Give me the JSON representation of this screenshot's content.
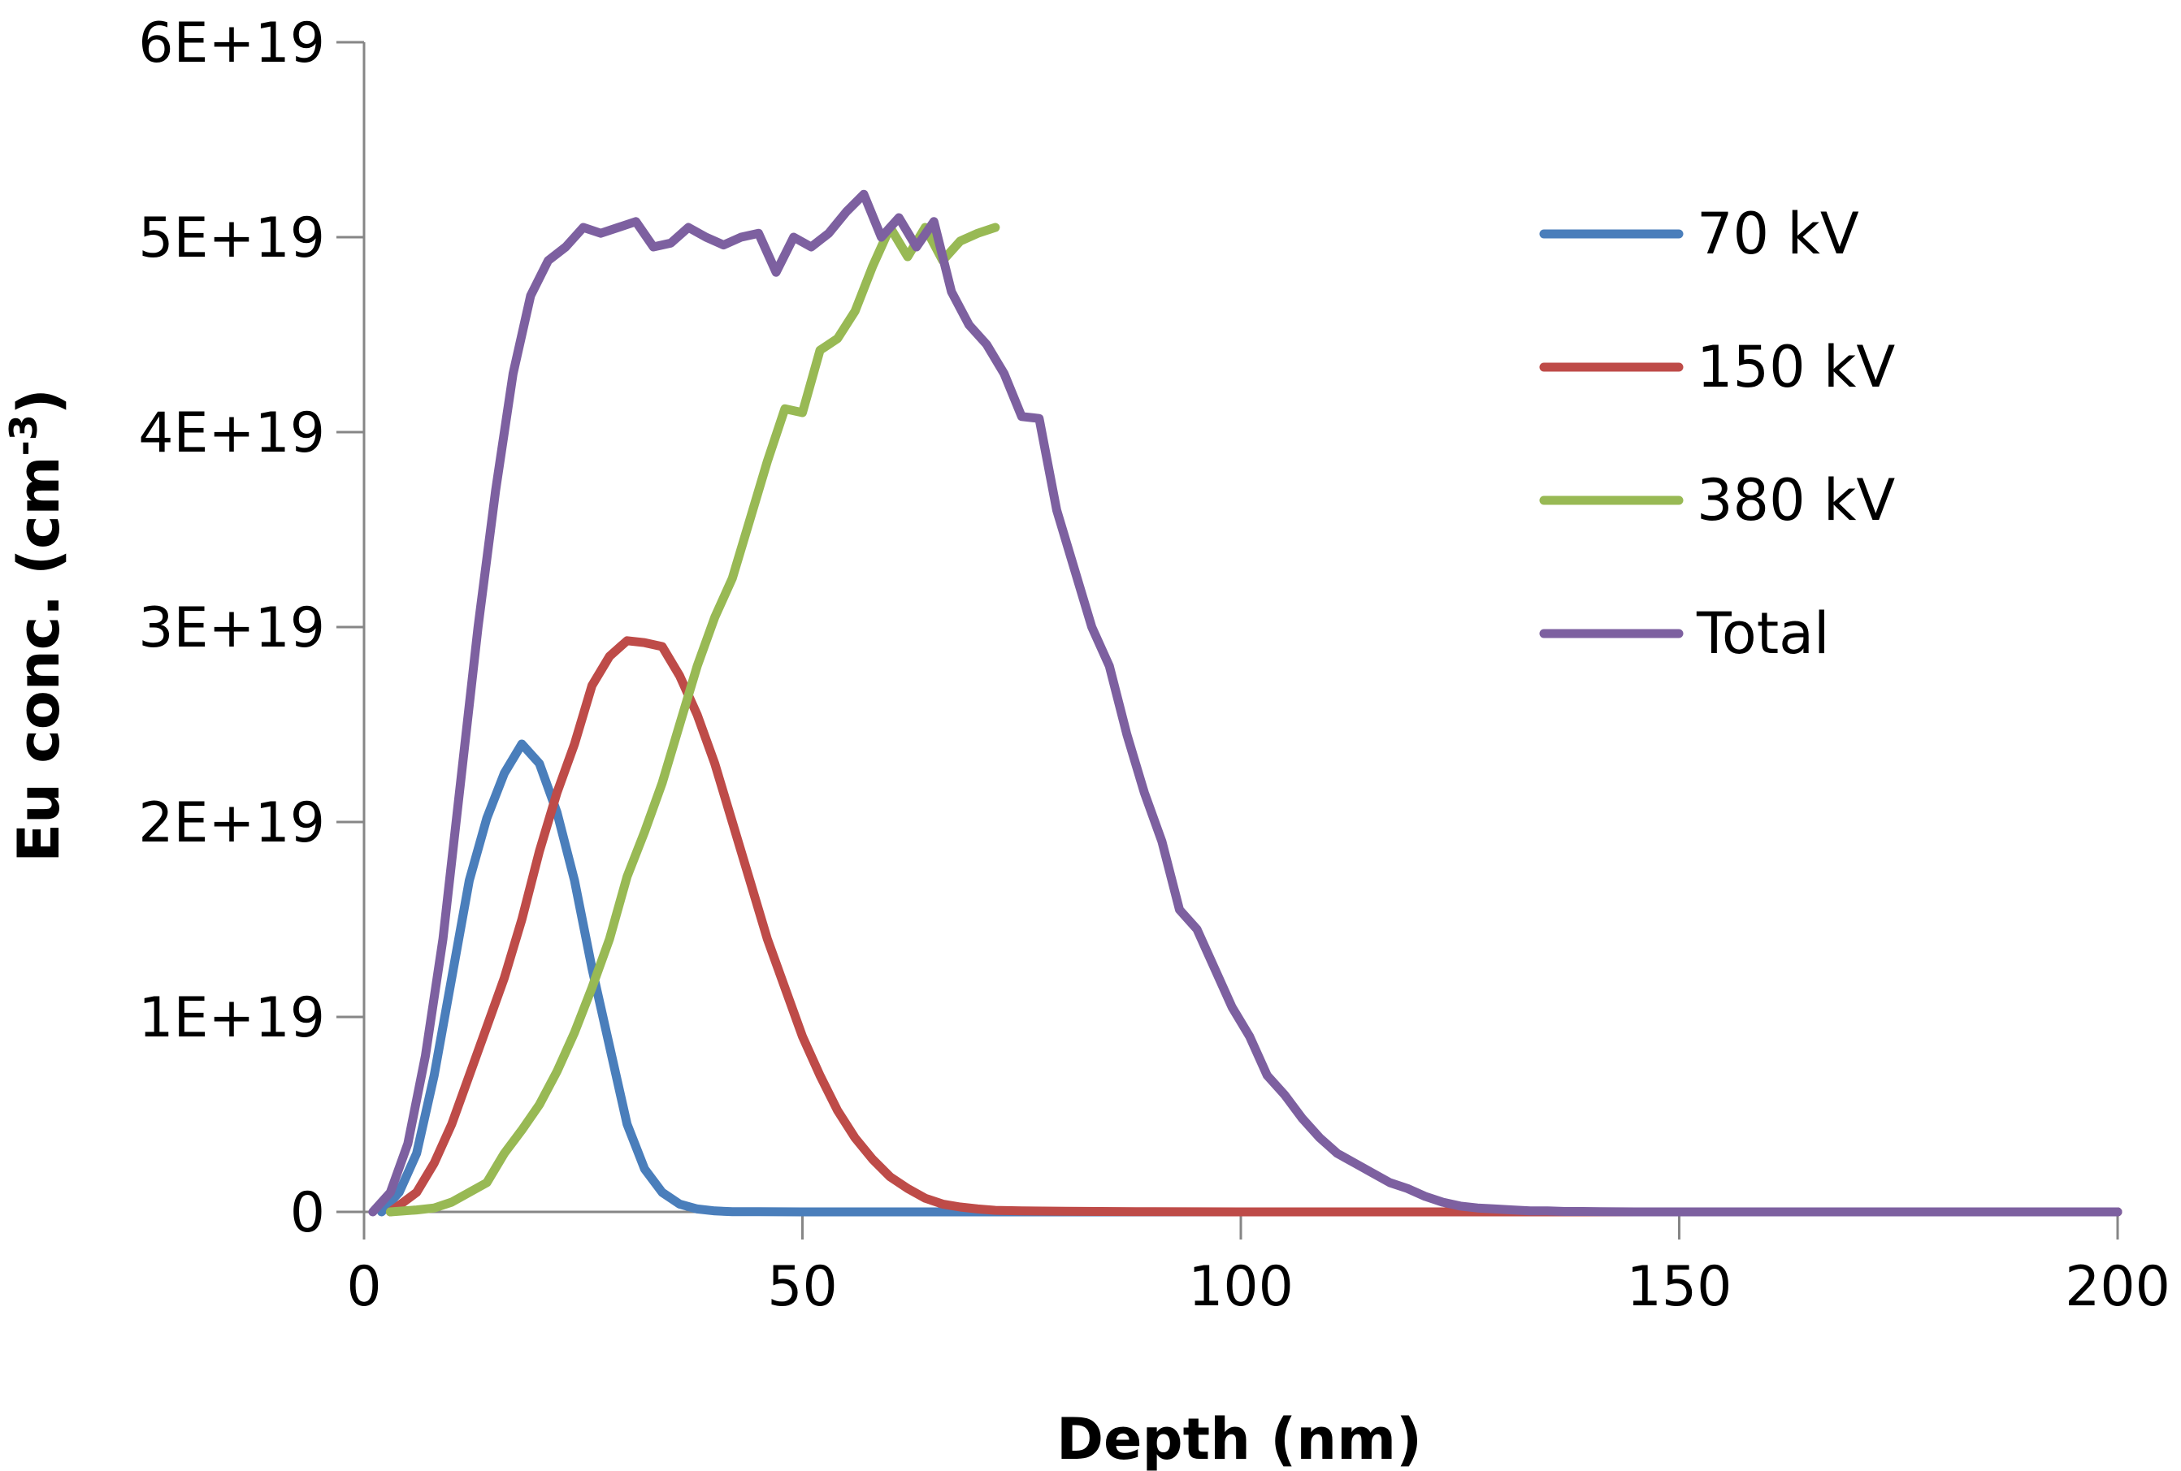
{
  "chart_data": {
    "type": "line",
    "title": "",
    "xlabel": "Depth (nm)",
    "ylabel_main": "Eu conc. (cm",
    "ylabel_sup": "-3",
    "ylabel_close": ")",
    "xlim": [
      0,
      200
    ],
    "ylim": [
      0,
      6e+19
    ],
    "x_ticks": [
      0,
      50,
      100,
      150,
      200
    ],
    "x_tick_labels": [
      "0",
      "50",
      "100",
      "150",
      "200"
    ],
    "y_ticks": [
      0,
      1e+19,
      2e+19,
      3e+19,
      4e+19,
      5e+19,
      6e+19
    ],
    "y_tick_labels": [
      "0",
      "1E+19",
      "2E+19",
      "3E+19",
      "4E+19",
      "5E+19",
      "6E+19"
    ],
    "grid": false,
    "legend_position": "right",
    "series": [
      {
        "name": "70 kV",
        "color": "#4a7ebb",
        "x": [
          2,
          4,
          6,
          8,
          10,
          12,
          14,
          16,
          18,
          20,
          22,
          24,
          26,
          28,
          30,
          32,
          34,
          36,
          38,
          40,
          42,
          45,
          50,
          55,
          60,
          70,
          80,
          100,
          150,
          200
        ],
        "y": [
          0,
          1e+18,
          3e+18,
          7e+18,
          1.2e+19,
          1.7e+19,
          2.02e+19,
          2.25e+19,
          2.4e+19,
          2.3e+19,
          2.05e+19,
          1.7e+19,
          1.25e+19,
          8.5e+18,
          4.5e+18,
          2.2e+18,
          1e+18,
          4e+17,
          1.5e+17,
          5e+16,
          1e+16,
          8000000000000000.0,
          0,
          0,
          0,
          0,
          0,
          0,
          0,
          0
        ]
      },
      {
        "name": "150 kV",
        "color": "#be4b48",
        "x": [
          3,
          6,
          8,
          10,
          12,
          14,
          16,
          18,
          20,
          22,
          24,
          26,
          28,
          30,
          32,
          34,
          36,
          38,
          40,
          42,
          44,
          46,
          48,
          50,
          52,
          54,
          56,
          58,
          60,
          62,
          64,
          66,
          68,
          70,
          72,
          75,
          80,
          90,
          100,
          120,
          150,
          200
        ],
        "y": [
          0,
          1e+18,
          2.5e+18,
          4.5e+18,
          7e+18,
          9.5e+18,
          1.2e+19,
          1.5e+19,
          1.85e+19,
          2.15e+19,
          2.4e+19,
          2.7e+19,
          2.85e+19,
          2.93e+19,
          2.92e+19,
          2.9e+19,
          2.75e+19,
          2.55e+19,
          2.3e+19,
          2e+19,
          1.7e+19,
          1.4e+19,
          1.15e+19,
          9e+18,
          7e+18,
          5.2e+18,
          3.8e+18,
          2.7e+18,
          1.8e+18,
          1.2e+18,
          7e+17,
          4e+17,
          2.5e+17,
          1.5e+17,
          8e+16,
          5e+16,
          3e+16,
          1e+16,
          0,
          0,
          0,
          0
        ]
      },
      {
        "name": "380 kV",
        "color": "#98b954",
        "x": [
          3,
          6,
          8,
          10,
          12,
          14,
          16,
          18,
          20,
          22,
          24,
          26,
          28,
          30,
          32,
          34,
          36,
          38,
          40,
          42,
          44,
          46,
          48,
          50,
          52,
          54,
          56,
          58,
          60,
          62,
          64,
          66,
          68,
          70,
          72
        ],
        "y": [
          0,
          1e+17,
          2e+17,
          5e+17,
          1e+18,
          1.5e+18,
          3e+18,
          4.2e+18,
          5.5e+18,
          7.2e+18,
          9.2e+18,
          1.15e+19,
          1.4e+19,
          1.72e+19,
          1.95e+19,
          2.2e+19,
          2.5e+19,
          2.8e+19,
          3.05e+19,
          3.25e+19,
          3.55e+19,
          3.85e+19,
          4.12e+19,
          4.1e+19,
          4.42e+19,
          4.48e+19,
          4.62e+19,
          4.85e+19,
          5.05e+19,
          4.9e+19,
          5.05e+19,
          4.88e+19,
          4.98e+19,
          5.02e+19,
          5.05e+19
        ]
      },
      {
        "name": "Total",
        "color": "#7d60a0",
        "x": [
          1,
          3,
          5,
          7,
          9,
          11,
          13,
          15,
          17,
          19,
          21,
          23,
          25,
          27,
          29,
          31,
          33,
          35,
          37,
          39,
          41,
          43,
          45,
          47,
          49,
          51,
          53,
          55,
          57,
          59,
          61,
          63,
          65,
          67,
          69,
          71,
          73,
          75,
          77,
          79,
          81,
          83,
          85,
          87,
          89,
          91,
          93,
          95,
          97,
          99,
          101,
          103,
          105,
          107,
          109,
          111,
          113,
          115,
          117,
          119,
          121,
          123,
          125,
          127,
          129,
          131,
          133,
          135,
          137,
          139,
          141,
          145,
          150,
          155,
          160,
          165,
          170,
          180,
          190,
          200
        ],
        "y": [
          0,
          1e+18,
          3.5e+18,
          8e+18,
          1.4e+19,
          2.2e+19,
          3e+19,
          3.7e+19,
          4.3e+19,
          4.7e+19,
          4.88e+19,
          4.95e+19,
          5.05e+19,
          5.02e+19,
          5.05e+19,
          5.08e+19,
          4.95e+19,
          4.97e+19,
          5.05e+19,
          5e+19,
          4.96e+19,
          5e+19,
          5.02e+19,
          4.82e+19,
          5e+19,
          4.95e+19,
          5.02e+19,
          5.13e+19,
          5.22e+19,
          5e+19,
          5.1e+19,
          4.95e+19,
          5.08e+19,
          4.72e+19,
          4.55e+19,
          4.45e+19,
          4.3e+19,
          4.08e+19,
          4.07e+19,
          3.6e+19,
          3.3e+19,
          3e+19,
          2.8e+19,
          2.45e+19,
          2.15e+19,
          1.9e+19,
          1.55e+19,
          1.45e+19,
          1.25e+19,
          1.05e+19,
          9e+18,
          7e+18,
          6e+18,
          4.8e+18,
          3.8e+18,
          3e+18,
          2.5e+18,
          2e+18,
          1.5e+18,
          1.2e+18,
          8e+17,
          5e+17,
          3e+17,
          2e+17,
          1.5e+17,
          1e+17,
          5e+16,
          5e+16,
          2e+16,
          2e+16,
          1e+16,
          0,
          0,
          0,
          0,
          0,
          0,
          0,
          0,
          0
        ]
      }
    ]
  }
}
